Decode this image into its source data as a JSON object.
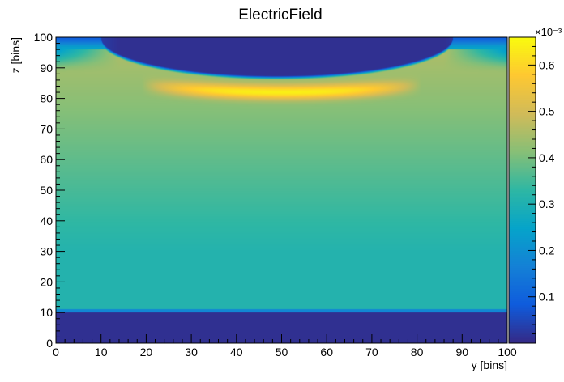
{
  "chart_data": {
    "type": "heatmap",
    "title": "ElectricField",
    "xlabel": "y [bins]",
    "ylabel": "z [bins]",
    "xlim": [
      0,
      100
    ],
    "ylim": [
      0,
      100
    ],
    "x_ticks": [
      0,
      10,
      20,
      30,
      40,
      50,
      60,
      70,
      80,
      90,
      100
    ],
    "y_ticks": [
      0,
      10,
      20,
      30,
      40,
      50,
      60,
      70,
      80,
      90,
      100
    ],
    "colorbar": {
      "min": 0.0,
      "max": 0.00066,
      "exponent_label": "×10⁻³",
      "ticks": [
        0.1,
        0.2,
        0.3,
        0.4,
        0.5,
        0.6
      ],
      "palette": "kBird",
      "colors": [
        "#352a87",
        "#0f5cdd",
        "#1481d6",
        "#06a4ca",
        "#2eb7a4",
        "#87bf77",
        "#d1bb59",
        "#fec832",
        "#f9fb0e"
      ]
    },
    "regions": [
      {
        "name": "bottom_band",
        "z_range": [
          0,
          10
        ],
        "value": 1e-05
      },
      {
        "name": "transition",
        "z_range": [
          10,
          11
        ],
        "value": 0.00018
      },
      {
        "name": "lower_bulk",
        "z_range": [
          11,
          30
        ],
        "value": 0.00031
      },
      {
        "name": "upper_bulk",
        "z_range": [
          30,
          80
        ],
        "value_range": [
          0.00033,
          0.00042
        ]
      },
      {
        "name": "peak_arc",
        "y_range": [
          20,
          80
        ],
        "z_center": 82,
        "value": 0.00064
      },
      {
        "name": "top_dome",
        "y_range": [
          10,
          88
        ],
        "z_range": [
          86,
          100
        ],
        "value": 1e-05
      }
    ]
  }
}
